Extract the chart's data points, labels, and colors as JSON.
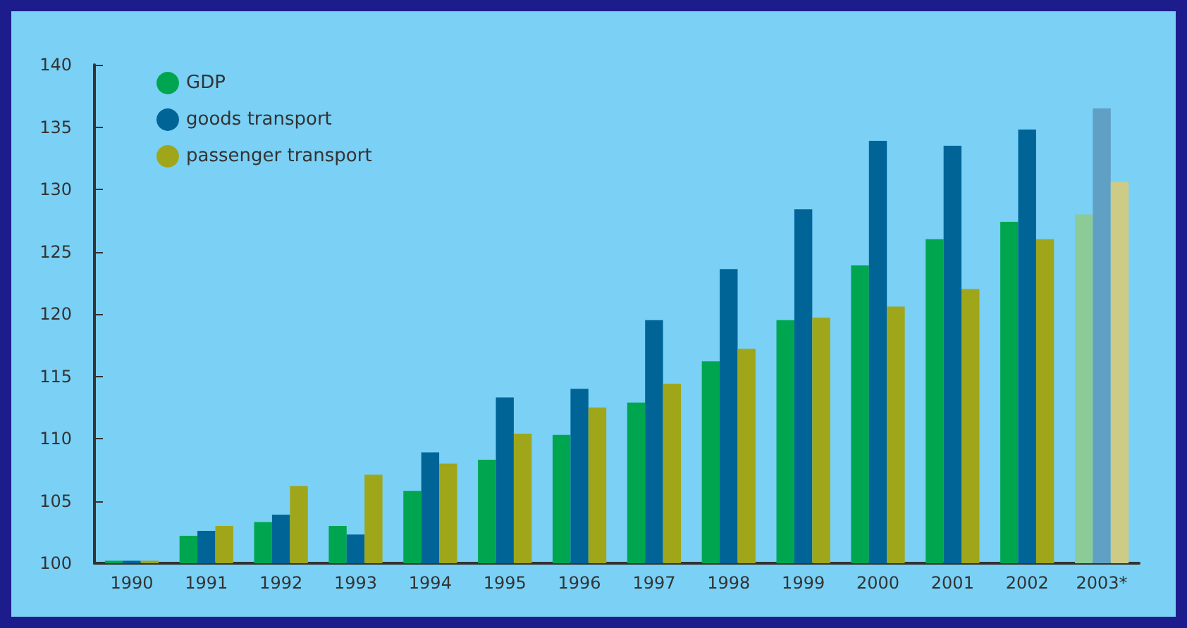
{
  "chart_data": {
    "type": "bar",
    "categories": [
      "1990",
      "1991",
      "1992",
      "1993",
      "1994",
      "1995",
      "1996",
      "1997",
      "1998",
      "1999",
      "2000",
      "2001",
      "2002",
      "2003*"
    ],
    "series": [
      {
        "name": "GDP",
        "color": "#00a64f",
        "colors": [
          "#00a64f",
          "#00a64f",
          "#00a64f",
          "#00a64f",
          "#00a64f",
          "#00a64f",
          "#00a64f",
          "#00a64f",
          "#00a64f",
          "#00a64f",
          "#00a64f",
          "#00a64f",
          "#00a64f",
          "#8bcb98"
        ],
        "values": [
          100.2,
          102.2,
          103.3,
          103.0,
          105.8,
          108.3,
          110.3,
          112.9,
          116.2,
          119.5,
          123.9,
          126.0,
          127.4,
          128.0
        ]
      },
      {
        "name": "goods transport",
        "color": "#006497",
        "colors": [
          "#006497",
          "#006497",
          "#006497",
          "#006497",
          "#006497",
          "#006497",
          "#006497",
          "#006497",
          "#006497",
          "#006497",
          "#006497",
          "#006497",
          "#006497",
          "#5fa0c4"
        ],
        "values": [
          100.2,
          102.6,
          103.9,
          102.3,
          108.9,
          113.3,
          114.0,
          119.5,
          123.6,
          128.4,
          133.9,
          133.5,
          134.8,
          136.5
        ]
      },
      {
        "name": "passenger transport",
        "color": "#a0a61a",
        "colors": [
          "#a0a61a",
          "#a0a61a",
          "#a0a61a",
          "#a0a61a",
          "#a0a61a",
          "#a0a61a",
          "#a0a61a",
          "#a0a61a",
          "#a0a61a",
          "#a0a61a",
          "#a0a61a",
          "#a0a61a",
          "#a0a61a",
          "#cdcb85"
        ],
        "values": [
          100.2,
          103.0,
          106.2,
          107.1,
          108.0,
          110.4,
          112.5,
          114.4,
          117.2,
          119.7,
          120.6,
          122.0,
          126.0,
          130.6
        ]
      }
    ],
    "ylim": [
      100,
      140
    ],
    "yticks": [
      100,
      105,
      110,
      115,
      120,
      125,
      130,
      135,
      140
    ],
    "grid": false,
    "legend": "top left"
  }
}
